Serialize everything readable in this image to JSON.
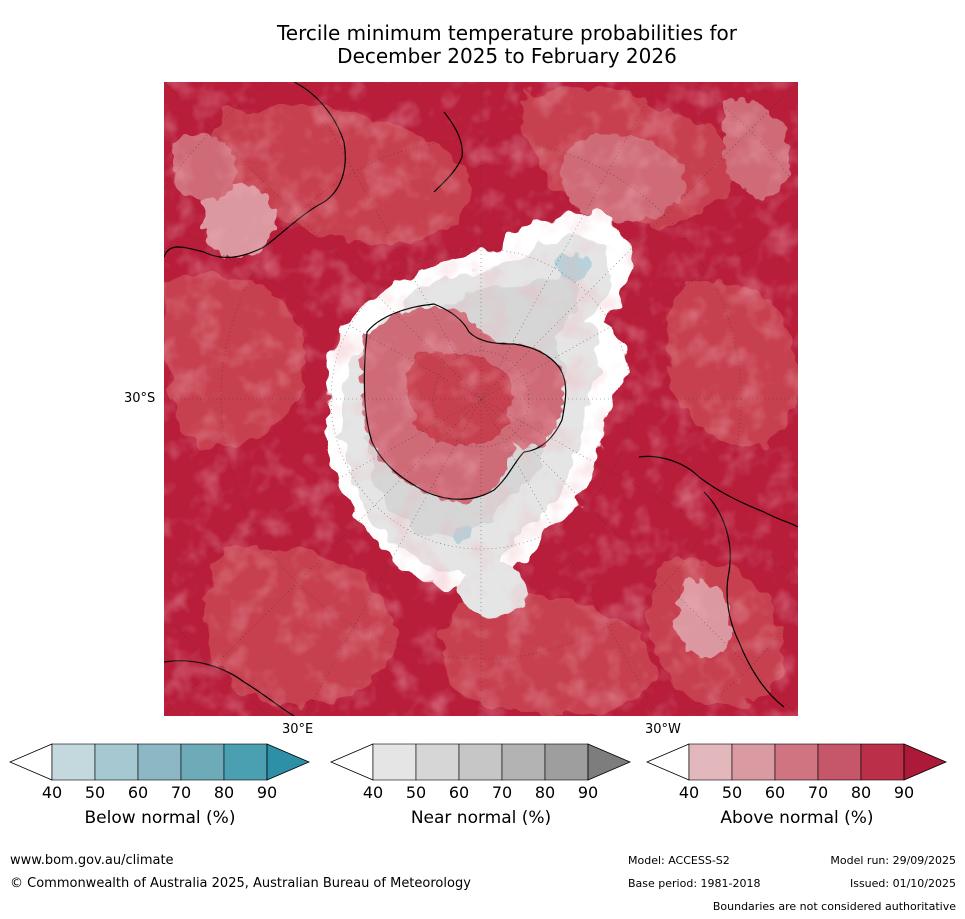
{
  "title": {
    "line1": "Tercile minimum temperature probabilities for",
    "line2": "December 2025 to February 2026"
  },
  "map": {
    "projection": "South polar stereographic",
    "labels": {
      "lat30s": "30°S",
      "lon30e": "30°E",
      "lon30w": "30°W"
    },
    "colors": {
      "above_90": "#b81d3a",
      "above_80": "#c7404f",
      "above_70": "#cf6b77",
      "above_60": "#dc98a1",
      "above_50": "#e6b7bd",
      "near_40": "#ffffff",
      "near_50": "#e5e5e5",
      "near_60": "#d6d6d6",
      "near_70": "#c8c8c8",
      "below_50": "#b7d2da"
    }
  },
  "colorbars": [
    {
      "name": "below",
      "title": "Below normal (%)",
      "ticks": [
        "40",
        "50",
        "60",
        "70",
        "80",
        "90"
      ],
      "colors": [
        "#ffffff",
        "#c3d9de",
        "#a6c8d0",
        "#8bb8c4",
        "#6eabb9",
        "#4aa0b0",
        "#2e90a7"
      ]
    },
    {
      "name": "near",
      "title": "Near normal (%)",
      "ticks": [
        "40",
        "50",
        "60",
        "70",
        "80",
        "90"
      ],
      "colors": [
        "#ffffff",
        "#e5e5e5",
        "#d6d6d6",
        "#c6c6c6",
        "#b3b3b3",
        "#9e9e9e",
        "#7d7d7d"
      ]
    },
    {
      "name": "above",
      "title": "Above normal (%)",
      "ticks": [
        "40",
        "50",
        "60",
        "70",
        "80",
        "90"
      ],
      "colors": [
        "#ffffff",
        "#e2b8bd",
        "#d99aa2",
        "#cf7480",
        "#c6566a",
        "#bb3048",
        "#ad1a39"
      ]
    }
  ],
  "footer": {
    "website": "www.bom.gov.au/climate",
    "copyright": "© Commonwealth of Australia 2025, Australian Bureau of Meteorology",
    "model": "Model: ACCESS-S2",
    "model_run": "Model run: 29/09/2025",
    "base_period": "Base period: 1981-2018",
    "issued": "Issued: 01/10/2025",
    "disclaimer": "Boundaries are not considered authoritative"
  }
}
